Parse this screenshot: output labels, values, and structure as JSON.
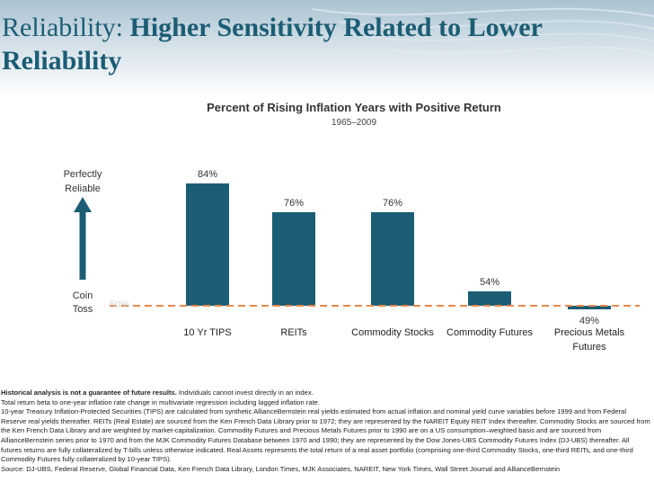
{
  "slide": {
    "title_prefix": "Reliability: ",
    "title_bold": "Higher Sensitivity Related to Lower Reliability"
  },
  "colors": {
    "bar": "#1b5d74",
    "reference_line": "#e8884a",
    "arrow": "#1b5d74",
    "title": "#1b5d74"
  },
  "chart_data": {
    "type": "bar",
    "title": "Percent of Rising Inflation Years with Positive Return",
    "subtitle": "1965–2009",
    "categories": [
      "10 Yr TIPS",
      "REITs",
      "Commodity Stocks",
      "Commodity Futures",
      "Precious Metals Futures"
    ],
    "values": [
      84,
      76,
      76,
      54,
      49
    ],
    "value_labels": [
      "84%",
      "76%",
      "76%",
      "54%",
      "49%"
    ],
    "baseline": 50,
    "baseline_label": "50%",
    "ylim": [
      49,
      85
    ],
    "axis_annotation": {
      "top_line1": "Perfectly",
      "top_line2": "Reliable",
      "bottom_line1": "Coin",
      "bottom_line2": "Toss"
    }
  },
  "footnotes": {
    "disclaimer_bold": "Historical analysis is not a guarantee of future results.",
    "disclaimer_rest": " Individuals cannot invest directly in an index.",
    "lines": [
      "Total return beta to one-year inflation rate change in multivariate regression including lagged inflation rate.",
      "10-year Treasury Inflation-Protected Securities (TIPS) are calculated from synthetic AllianceBernstein real yields estimated from actual inflation and nominal yield curve variables before 1999 and from Federal Reserve real yields thereafter. REITs (Real Estate) are sourced from the Ken French Data Library prior to 1972; they are represented by the NAREIT Equity REIT Index thereafter. Commodity Stocks are sourced from the Ken French Data Library and are weighted by market-capitalization. Commodity Futures and Precious Metals Futures prior to 1990 are on a US consumption–weighted basis and are sourced from AllianceBernstein series prior to 1970 and from the MJK Commodity Futures Database between 1970 and 1990; they are represented by the Dow Jones-UBS Commodity Futures Index (DJ-UBS) thereafter. All futures returns are fully collateralized by T-bills unless otherwise indicated. Real Assets represents the total return of a real asset portfolio (comprising one-third Commodity Stocks, one-third REITs, and one-third Commodity Futures fully collateralized by 10-year TIPS).",
      "Source: DJ-UBS, Federal Reserve, Global Financial Data, Ken French Data Library, London Times, MJK Associates, NAREIT, New York Times, Wall Street Journal and AllianceBernstein"
    ]
  }
}
